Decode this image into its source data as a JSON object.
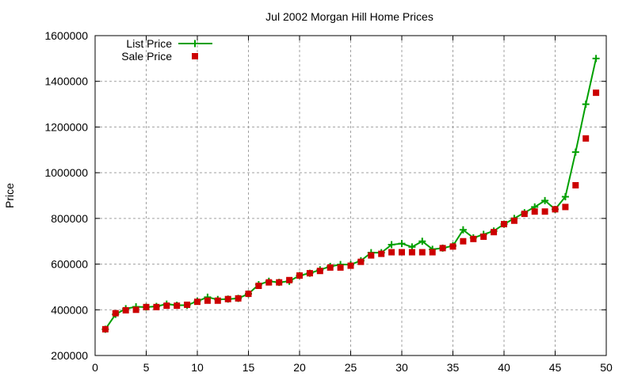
{
  "chart_data": {
    "type": "line",
    "title": "Jul 2002 Morgan Hill Home Prices",
    "xlabel": "",
    "ylabel": "Price",
    "xlim": [
      0,
      50
    ],
    "ylim": [
      200000,
      1600000
    ],
    "xticks": [
      0,
      5,
      10,
      15,
      20,
      25,
      30,
      35,
      40,
      45,
      50
    ],
    "yticks": [
      200000,
      400000,
      600000,
      800000,
      1000000,
      1200000,
      1400000,
      1600000
    ],
    "grid": true,
    "legend_position": "top-left",
    "x": [
      1,
      2,
      3,
      4,
      5,
      6,
      7,
      8,
      9,
      10,
      11,
      12,
      13,
      14,
      15,
      16,
      17,
      18,
      19,
      20,
      21,
      22,
      23,
      24,
      25,
      26,
      27,
      28,
      29,
      30,
      31,
      32,
      33,
      34,
      35,
      36,
      37,
      38,
      39,
      40,
      41,
      42,
      43,
      44,
      45,
      46,
      47,
      48,
      49
    ],
    "series": [
      {
        "name": "List Price",
        "style": "linespoints",
        "color": "#00a000",
        "values": [
          315000,
          380000,
          405000,
          413000,
          412000,
          415000,
          425000,
          420000,
          420000,
          438000,
          455000,
          445000,
          447000,
          450000,
          470000,
          510000,
          525000,
          520000,
          525000,
          550000,
          560000,
          575000,
          590000,
          598000,
          598000,
          615000,
          650000,
          650000,
          685000,
          690000,
          675000,
          700000,
          665000,
          670000,
          680000,
          750000,
          715000,
          730000,
          745000,
          775000,
          800000,
          825000,
          850000,
          878000,
          840000,
          895000,
          1090000,
          1300000,
          1500000
        ]
      },
      {
        "name": "Sale Price",
        "style": "points",
        "color": "#cc0000",
        "values": [
          315000,
          385000,
          398000,
          400000,
          412000,
          412000,
          418000,
          418000,
          422000,
          435000,
          440000,
          440000,
          447000,
          450000,
          470000,
          505000,
          520000,
          520000,
          530000,
          550000,
          560000,
          570000,
          585000,
          585000,
          593000,
          610000,
          638000,
          645000,
          652000,
          652000,
          652000,
          652000,
          652000,
          670000,
          677000,
          700000,
          710000,
          720000,
          740000,
          775000,
          790000,
          820000,
          830000,
          830000,
          840000,
          850000,
          945000,
          1150000,
          1350000
        ]
      }
    ]
  }
}
